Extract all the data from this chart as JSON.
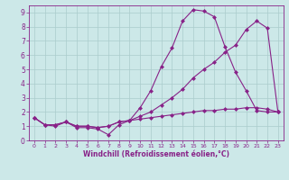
{
  "xlabel": "Windchill (Refroidissement éolien,°C)",
  "background_color": "#cce8e8",
  "grid_color": "#aacccc",
  "line_color": "#882288",
  "xlim": [
    -0.5,
    23.5
  ],
  "ylim": [
    0,
    9.5
  ],
  "xticks": [
    0,
    1,
    2,
    3,
    4,
    5,
    6,
    7,
    8,
    9,
    10,
    11,
    12,
    13,
    14,
    15,
    16,
    17,
    18,
    19,
    20,
    21,
    22,
    23
  ],
  "yticks": [
    0,
    1,
    2,
    3,
    4,
    5,
    6,
    7,
    8,
    9
  ],
  "line1_x": [
    0,
    1,
    2,
    3,
    4,
    5,
    6,
    7,
    8,
    9,
    10,
    11,
    12,
    13,
    14,
    15,
    16,
    17,
    18,
    19,
    20,
    21,
    22,
    23
  ],
  "line1_y": [
    1.6,
    1.1,
    1.0,
    1.3,
    0.9,
    0.9,
    0.8,
    0.4,
    1.1,
    1.4,
    2.3,
    3.5,
    5.2,
    6.5,
    8.4,
    9.2,
    9.1,
    8.7,
    6.6,
    4.8,
    3.5,
    2.1,
    2.0,
    2.0
  ],
  "line2_x": [
    0,
    1,
    2,
    3,
    4,
    5,
    6,
    7,
    8,
    9,
    10,
    11,
    12,
    13,
    14,
    15,
    16,
    17,
    18,
    19,
    20,
    21,
    22,
    23
  ],
  "line2_y": [
    1.6,
    1.1,
    1.1,
    1.3,
    1.0,
    1.0,
    0.9,
    1.0,
    1.3,
    1.4,
    1.7,
    2.0,
    2.5,
    3.0,
    3.6,
    4.4,
    5.0,
    5.5,
    6.2,
    6.7,
    7.8,
    8.4,
    7.9,
    2.0
  ],
  "line3_x": [
    0,
    1,
    2,
    3,
    4,
    5,
    6,
    7,
    8,
    9,
    10,
    11,
    12,
    13,
    14,
    15,
    16,
    17,
    18,
    19,
    20,
    21,
    22,
    23
  ],
  "line3_y": [
    1.6,
    1.1,
    1.1,
    1.3,
    1.0,
    1.0,
    0.9,
    1.0,
    1.3,
    1.4,
    1.5,
    1.6,
    1.7,
    1.8,
    1.9,
    2.0,
    2.1,
    2.1,
    2.2,
    2.2,
    2.3,
    2.3,
    2.2,
    2.0
  ]
}
